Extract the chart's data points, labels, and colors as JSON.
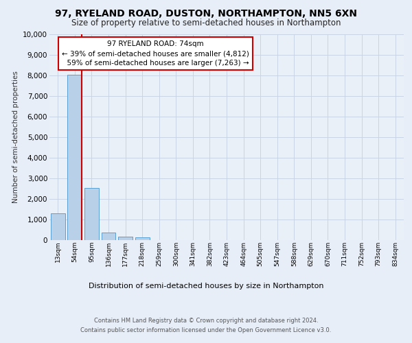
{
  "title1": "97, RYELAND ROAD, DUSTON, NORTHAMPTON, NN5 6XN",
  "title2": "Size of property relative to semi-detached houses in Northampton",
  "xlabel": "Distribution of semi-detached houses by size in Northampton",
  "ylabel": "Number of semi-detached properties",
  "footnote1": "Contains HM Land Registry data © Crown copyright and database right 2024.",
  "footnote2": "Contains public sector information licensed under the Open Government Licence v3.0.",
  "bar_labels": [
    "13sqm",
    "54sqm",
    "95sqm",
    "136sqm",
    "177sqm",
    "218sqm",
    "259sqm",
    "300sqm",
    "341sqm",
    "382sqm",
    "423sqm",
    "464sqm",
    "505sqm",
    "547sqm",
    "588sqm",
    "629sqm",
    "670sqm",
    "711sqm",
    "752sqm",
    "793sqm",
    "834sqm"
  ],
  "bar_values": [
    1300,
    8050,
    2520,
    370,
    155,
    120,
    0,
    0,
    0,
    0,
    0,
    0,
    0,
    0,
    0,
    0,
    0,
    0,
    0,
    0,
    0
  ],
  "bar_color": "#b8d0e8",
  "bar_edge_color": "#5a9fd4",
  "property_label": "97 RYELAND ROAD: 74sqm",
  "pct_smaller": 39,
  "pct_smaller_count": "4,812",
  "pct_larger": 59,
  "pct_larger_count": "7,263",
  "vline_x_index": 1,
  "annotation_box_color": "#ffffff",
  "annotation_box_edge": "#cc0000",
  "vline_color": "#cc0000",
  "ylim": [
    0,
    10000
  ],
  "yticks": [
    0,
    1000,
    2000,
    3000,
    4000,
    5000,
    6000,
    7000,
    8000,
    9000,
    10000
  ],
  "grid_color": "#c8d4e4",
  "bg_color": "#e8eef8",
  "plot_bg_color": "#eaf0f8"
}
